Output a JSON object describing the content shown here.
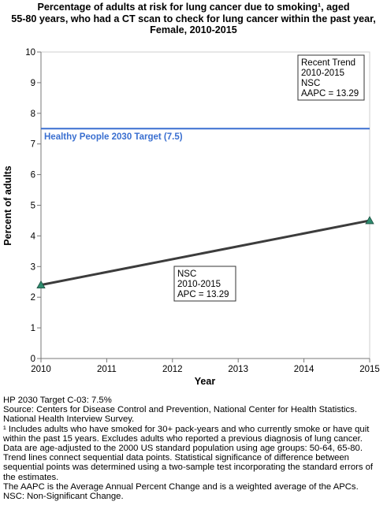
{
  "chart_data": {
    "type": "line",
    "title_lines": [
      "Percentage of adults at risk for lung cancer due to smoking¹, aged",
      "55-80 years, who had a CT scan to check for lung cancer within the past year,",
      "Female,  2010-2015"
    ],
    "xlabel": "Year",
    "ylabel": "Percent of adults",
    "x_ticks": [
      "2010",
      "2011",
      "2012",
      "2013",
      "2014",
      "2015"
    ],
    "y_ticks": [
      "0",
      "1",
      "2",
      "3",
      "4",
      "5",
      "6",
      "7",
      "8",
      "9",
      "10"
    ],
    "xlim": [
      2010,
      2015
    ],
    "ylim": [
      0,
      10
    ],
    "grid": false,
    "series": [
      {
        "x": [
          2010,
          2015
        ],
        "y": [
          2.4,
          4.5
        ],
        "color": "#3c3c3c",
        "marker": "triangle",
        "marker_color": "#2e8b6e"
      }
    ],
    "target_line": {
      "value": 7.5,
      "label": "Healthy People 2030 Target (7.5)",
      "color": "#3a6fd0"
    },
    "annotations": {
      "trend_box": [
        "Recent Trend",
        "2010-2015",
        "NSC",
        "AAPC = 13.29"
      ],
      "segment_box": [
        "NSC",
        "2010-2015",
        "APC = 13.29"
      ]
    }
  },
  "footnotes": [
    "HP 2030 Target C-03: 7.5%",
    "Source: Centers for Disease Control and Prevention, National Center for Health Statistics. National Health Interview Survey.",
    "¹ Includes adults who have smoked for 30+ pack-years and who currently smoke or have quit within the past 15 years. Excludes adults who reported a previous diagnosis of lung cancer.",
    "Data are age-adjusted to the 2000 US standard population using age groups: 50-64, 65-80.",
    "Trend lines connect sequential data points. Statistical significance of difference between sequential points was determined using a two-sample test incorporating the standard errors of the estimates.",
    "The AAPC is the Average Annual Percent Change and is a weighted average of the APCs.",
    "NSC: Non-Significant Change."
  ]
}
